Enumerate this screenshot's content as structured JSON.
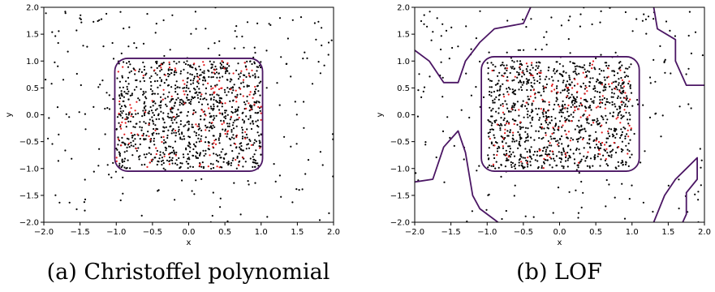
{
  "chart_data": [
    {
      "type": "scatter",
      "caption": "(a) Christoffel polynomial",
      "xlabel": "x",
      "ylabel": "y",
      "xlim": [
        -2.0,
        2.0
      ],
      "ylim": [
        -2.0,
        2.0
      ],
      "xticks": [
        "−2.0",
        "−1.5",
        "−1.0",
        "−0.5",
        "0.0",
        "0.5",
        "1.0",
        "1.5",
        "2.0"
      ],
      "yticks": [
        "−2.0",
        "−1.5",
        "−1.0",
        "−0.5",
        "0.0",
        "0.5",
        "1.0",
        "1.5",
        "2.0"
      ],
      "grid": false,
      "series": [
        {
          "color": "#000000",
          "distribution": "uniform",
          "region": [
            [
              -1.0,
              1.0
            ],
            [
              -1.0,
              1.0
            ]
          ],
          "count": 950
        },
        {
          "color": "#e31a1c",
          "distribution": "uniform",
          "region": [
            [
              -1.0,
              1.0
            ],
            [
              -1.0,
              1.0
            ]
          ],
          "count": 150
        },
        {
          "color": "#000000",
          "distribution": "uniform",
          "region": [
            [
              -2.0,
              2.0
            ],
            [
              -2.0,
              2.0
            ]
          ],
          "count": 240
        }
      ],
      "contours": [
        {
          "color": "#4b1664",
          "shape": "rounded-rectangle",
          "x": [
            -1.02,
            1.02
          ],
          "y": [
            -1.05,
            1.05
          ]
        }
      ]
    },
    {
      "type": "scatter",
      "caption": "(b) LOF",
      "xlabel": "x",
      "ylabel": "y",
      "xlim": [
        -2.0,
        2.0
      ],
      "ylim": [
        -2.0,
        2.0
      ],
      "xticks": [
        "−2.0",
        "−1.5",
        "−1.0",
        "−0.5",
        "0.0",
        "0.5",
        "1.0",
        "1.5",
        "2.0"
      ],
      "yticks": [
        "−2.0",
        "−1.5",
        "−1.0",
        "−0.5",
        "0.0",
        "0.5",
        "1.0",
        "1.5",
        "2.0"
      ],
      "grid": false,
      "series": [
        {
          "color": "#000000",
          "distribution": "uniform",
          "region": [
            [
              -1.0,
              1.0
            ],
            [
              -1.0,
              1.0
            ]
          ],
          "count": 950
        },
        {
          "color": "#e31a1c",
          "distribution": "uniform",
          "region": [
            [
              -1.0,
              1.0
            ],
            [
              -1.0,
              1.0
            ]
          ],
          "count": 150
        },
        {
          "color": "#000000",
          "distribution": "uniform",
          "region": [
            [
              -2.0,
              2.0
            ],
            [
              -2.0,
              2.0
            ]
          ],
          "count": 240
        }
      ],
      "contours": [
        {
          "color": "#4b1664",
          "shape": "rounded-rectangle",
          "x": [
            -1.08,
            1.1
          ],
          "y": [
            -1.05,
            1.08
          ]
        },
        {
          "color": "#4b1664",
          "shape": "corner-region",
          "points": [
            [
              -2.0,
              1.2
            ],
            [
              -1.8,
              1.0
            ],
            [
              -1.6,
              0.6
            ],
            [
              -1.4,
              0.6
            ],
            [
              -1.3,
              1.0
            ],
            [
              -1.1,
              1.35
            ],
            [
              -0.9,
              1.6
            ],
            [
              -0.5,
              1.7
            ],
            [
              -0.4,
              2.0
            ]
          ]
        },
        {
          "color": "#4b1664",
          "shape": "corner-region",
          "points": [
            [
              1.3,
              2.0
            ],
            [
              1.35,
              1.6
            ],
            [
              1.6,
              1.4
            ],
            [
              1.6,
              1.0
            ],
            [
              1.75,
              0.55
            ],
            [
              2.0,
              0.55
            ]
          ]
        },
        {
          "color": "#4b1664",
          "shape": "corner-region",
          "points": [
            [
              -2.0,
              -1.25
            ],
            [
              -1.75,
              -1.2
            ],
            [
              -1.6,
              -0.6
            ],
            [
              -1.4,
              -0.3
            ],
            [
              -1.3,
              -0.7
            ],
            [
              -1.2,
              -1.5
            ],
            [
              -1.1,
              -1.75
            ],
            [
              -0.85,
              -2.0
            ]
          ]
        },
        {
          "color": "#4b1664",
          "shape": "corner-region",
          "points": [
            [
              1.3,
              -2.0
            ],
            [
              1.45,
              -1.5
            ],
            [
              1.6,
              -1.2
            ],
            [
              1.75,
              -1.0
            ],
            [
              1.9,
              -0.8
            ],
            [
              1.9,
              -1.2
            ],
            [
              1.75,
              -1.45
            ],
            [
              1.75,
              -1.85
            ],
            [
              1.7,
              -2.0
            ]
          ]
        }
      ]
    }
  ]
}
